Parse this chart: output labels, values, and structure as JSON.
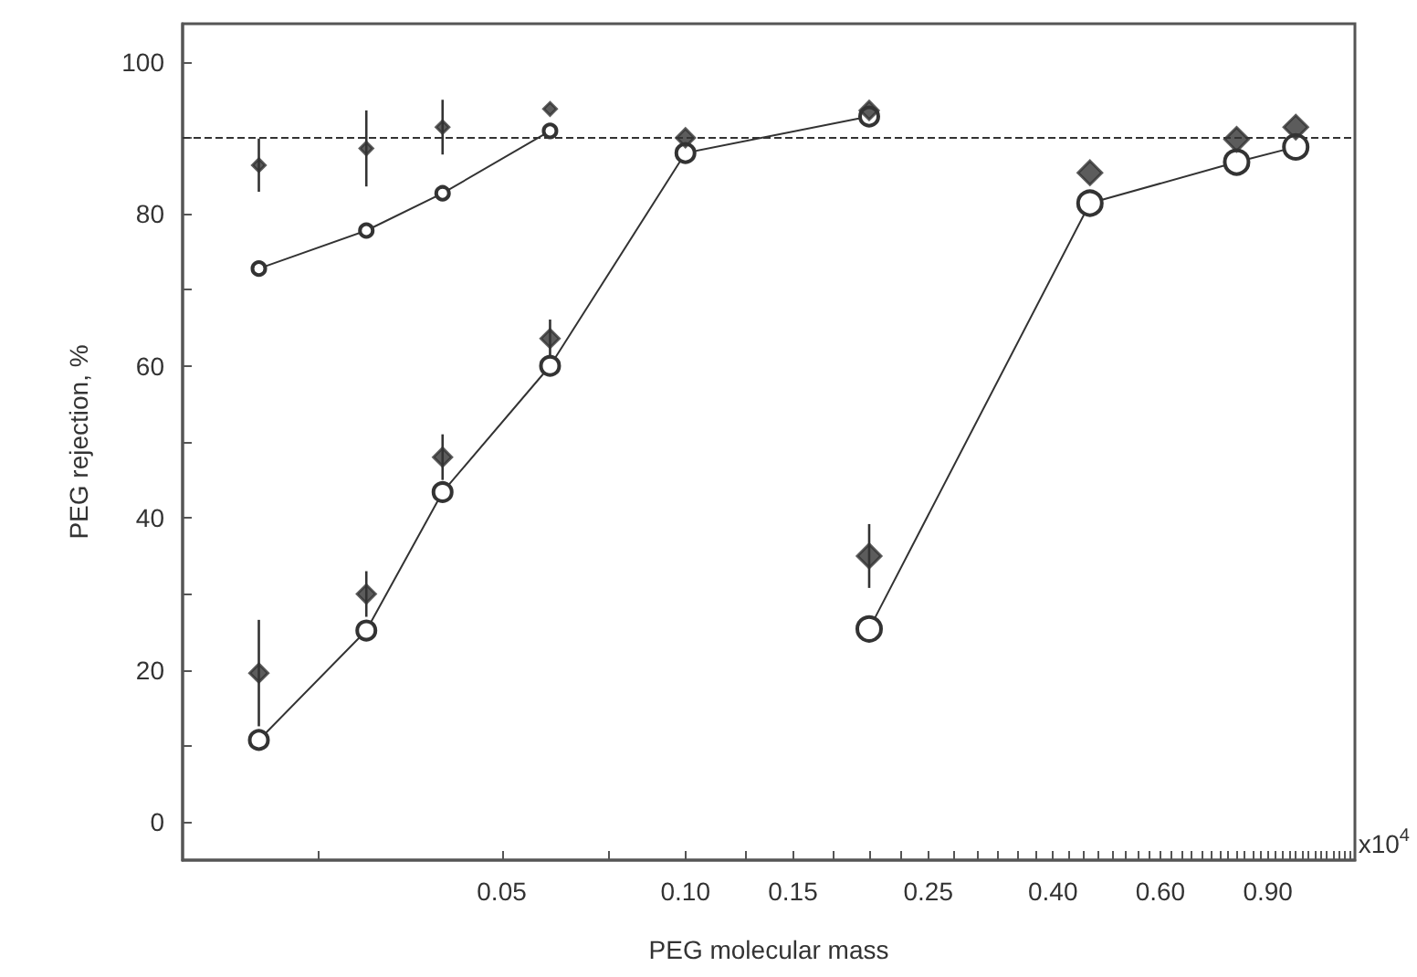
{
  "chart_data": {
    "type": "scatter",
    "xlabel": "PEG molecular mass",
    "ylabel": "PEG rejection, %",
    "annotations": [
      "x10$^{4}$"
    ],
    "log": "x",
    "grid": false,
    "legend": false,
    "xlim": [
      0.015,
      1.25
    ],
    "ylim": [
      -5,
      105
    ],
    "xticks": [
      {
        "value": 0.025,
        "label": null
      },
      {
        "value": 0.05,
        "label": "0.05"
      },
      {
        "value": 0.075,
        "label": null
      },
      {
        "value": 0.1,
        "label": "0.10"
      },
      {
        "value": 0.125,
        "label": null
      },
      {
        "value": 0.15,
        "label": "0.15"
      },
      {
        "value": 0.175,
        "label": null
      },
      {
        "value": 0.2,
        "label": null
      },
      {
        "value": 0.225,
        "label": null
      },
      {
        "value": 0.25,
        "label": "0.25"
      },
      {
        "value": 0.275,
        "label": null
      },
      {
        "value": 0.3,
        "label": null
      },
      {
        "value": 0.325,
        "label": null
      },
      {
        "value": 0.35,
        "label": null
      },
      {
        "value": 0.375,
        "label": null
      },
      {
        "value": 0.4,
        "label": "0.40"
      },
      {
        "value": 0.425,
        "label": null
      },
      {
        "value": 0.45,
        "label": null
      },
      {
        "value": 0.475,
        "label": null
      },
      {
        "value": 0.5,
        "label": null
      },
      {
        "value": 0.525,
        "label": null
      },
      {
        "value": 0.55,
        "label": null
      },
      {
        "value": 0.575,
        "label": null
      },
      {
        "value": 0.6,
        "label": "0.60"
      },
      {
        "value": 0.625,
        "label": null
      },
      {
        "value": 0.65,
        "label": null
      },
      {
        "value": 0.675,
        "label": null
      },
      {
        "value": 0.7,
        "label": null
      },
      {
        "value": 0.725,
        "label": null
      },
      {
        "value": 0.75,
        "label": null
      },
      {
        "value": 0.775,
        "label": null
      },
      {
        "value": 0.8,
        "label": null
      },
      {
        "value": 0.825,
        "label": null
      },
      {
        "value": 0.85,
        "label": null
      },
      {
        "value": 0.875,
        "label": null
      },
      {
        "value": 0.9,
        "label": "0.90"
      },
      {
        "value": 0.925,
        "label": null
      },
      {
        "value": 0.95,
        "label": null
      },
      {
        "value": 0.975,
        "label": null
      },
      {
        "value": 1.0,
        "label": null
      },
      {
        "value": 1.025,
        "label": null
      },
      {
        "value": 1.05,
        "label": null
      },
      {
        "value": 1.075,
        "label": null
      },
      {
        "value": 1.1,
        "label": null
      },
      {
        "value": 1.125,
        "label": null
      },
      {
        "value": 1.15,
        "label": null
      },
      {
        "value": 1.175,
        "label": null
      },
      {
        "value": 1.2,
        "label": null
      },
      {
        "value": 1.225,
        "label": null
      }
    ],
    "yticks": [
      0,
      {
        "value": 10,
        "label": null
      },
      20,
      {
        "value": 30,
        "label": null
      },
      40,
      {
        "value": 50,
        "label": null
      },
      60,
      {
        "value": 70,
        "label": null
      },
      80,
      {
        "value": 90,
        "label": null
      },
      100
    ],
    "ref_lines": [
      {
        "axis": "y",
        "value": 90,
        "line_style": "dashed",
        "color": "#333333"
      }
    ],
    "series": [
      {
        "type": "line",
        "marker": "circle",
        "color": "#333333",
        "x": [
          0.02,
          0.03,
          0.04,
          0.06
        ],
        "values": [
          72.8,
          77.8,
          82.7,
          90.9
        ]
      },
      {
        "marker": "diamond",
        "color": "#333333",
        "x": [
          0.02,
          0.03,
          0.04,
          0.06
        ],
        "values": [
          86.4,
          88.6,
          91.4,
          93.8
        ],
        "errors": [
          3.5,
          5,
          3.6,
          null
        ]
      },
      {
        "type": "line",
        "marker": "circle",
        "color": "#333333",
        "x": [
          0.02,
          0.03,
          0.04,
          0.06,
          0.1,
          0.2
        ],
        "values": [
          10.8,
          25.2,
          43.4,
          60,
          88,
          92.8
        ]
      },
      {
        "marker": "diamond",
        "color": "#333333",
        "x": [
          0.02,
          0.03,
          0.04,
          0.06,
          0.1,
          0.2
        ],
        "values": [
          19.6,
          30,
          48,
          63.6,
          90,
          93.6
        ],
        "errors": [
          7,
          3,
          3,
          2.5,
          null,
          null
        ]
      },
      {
        "type": "line",
        "marker": "circle",
        "color": "#333333",
        "x": [
          0.2,
          0.46,
          0.8,
          1.0
        ],
        "values": [
          25.4,
          81.4,
          86.8,
          88.8
        ]
      },
      {
        "marker": "diamond",
        "color": "#333333",
        "x": [
          0.2,
          0.46,
          0.8,
          1.0
        ],
        "values": [
          35,
          85.4,
          89.8,
          91.4
        ],
        "errors": [
          4.2,
          null,
          null,
          null
        ]
      }
    ]
  }
}
